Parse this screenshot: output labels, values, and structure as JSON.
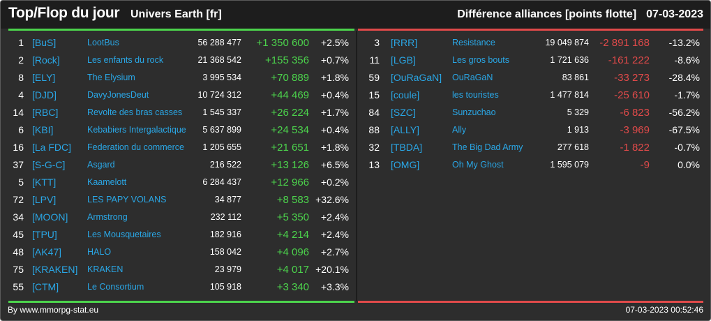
{
  "header": {
    "title": "Top/Flop du jour",
    "universe": "Univers Earth [fr]",
    "subtitle": "Différence alliances [points flotte]",
    "date": "07-03-2023"
  },
  "colors": {
    "accent_green": "#4cd34c",
    "accent_red": "#e04a4a",
    "tag_blue": "#2aa7e6",
    "background": "#2d2d2d"
  },
  "top": [
    {
      "rank": "1",
      "tag": "[BuS]",
      "name": "LootBus",
      "points": "56 288 477",
      "diff": "+1 350 600",
      "pct": "+2.5%"
    },
    {
      "rank": "2",
      "tag": "[Rock]",
      "name": "Les enfants du rock",
      "points": "21 368 542",
      "diff": "+155 356",
      "pct": "+0.7%"
    },
    {
      "rank": "8",
      "tag": "[ELY]",
      "name": "The Elysium",
      "points": "3 995 534",
      "diff": "+70 889",
      "pct": "+1.8%"
    },
    {
      "rank": "4",
      "tag": "[DJD]",
      "name": "DavyJonesDeut",
      "points": "10 724 312",
      "diff": "+44 469",
      "pct": "+0.4%"
    },
    {
      "rank": "14",
      "tag": "[RBC]",
      "name": "Revolte des bras casses",
      "points": "1 545 337",
      "diff": "+26 224",
      "pct": "+1.7%"
    },
    {
      "rank": "6",
      "tag": "[KBI]",
      "name": "Kebabiers Intergalactique",
      "points": "5 637 899",
      "diff": "+24 534",
      "pct": "+0.4%"
    },
    {
      "rank": "16",
      "tag": "[La FDC]",
      "name": "Federation du commerce",
      "points": "1 205 655",
      "diff": "+21 651",
      "pct": "+1.8%"
    },
    {
      "rank": "37",
      "tag": "[S-G-C]",
      "name": "Asgard",
      "points": "216 522",
      "diff": "+13 126",
      "pct": "+6.5%"
    },
    {
      "rank": "5",
      "tag": "[KTT]",
      "name": "Kaamelott",
      "points": "6 284 437",
      "diff": "+12 966",
      "pct": "+0.2%"
    },
    {
      "rank": "72",
      "tag": "[LPV]",
      "name": "LES PAPY VOLANS",
      "points": "34 877",
      "diff": "+8 583",
      "pct": "+32.6%"
    },
    {
      "rank": "34",
      "tag": "[MOON]",
      "name": "Armstrong",
      "points": "232 112",
      "diff": "+5 350",
      "pct": "+2.4%"
    },
    {
      "rank": "45",
      "tag": "[TPU]",
      "name": "Les Mousquetaires",
      "points": "182 916",
      "diff": "+4 214",
      "pct": "+2.4%"
    },
    {
      "rank": "48",
      "tag": "[AK47]",
      "name": "HALO",
      "points": "158 042",
      "diff": "+4 096",
      "pct": "+2.7%"
    },
    {
      "rank": "75",
      "tag": "[KRAKEN]",
      "name": "KRAKEN",
      "points": "23 979",
      "diff": "+4 017",
      "pct": "+20.1%"
    },
    {
      "rank": "55",
      "tag": "[CTM]",
      "name": "Le Consortium",
      "points": "105 918",
      "diff": "+3 340",
      "pct": "+3.3%"
    }
  ],
  "flop": [
    {
      "rank": "3",
      "tag": "[RRR]",
      "name": "Resistance",
      "points": "19 049 874",
      "diff": "-2 891 168",
      "pct": "-13.2%"
    },
    {
      "rank": "11",
      "tag": "[LGB]",
      "name": "Les gros bouts",
      "points": "1 721 636",
      "diff": "-161 222",
      "pct": "-8.6%"
    },
    {
      "rank": "59",
      "tag": "[OuRaGaN]",
      "name": "OuRaGaN",
      "points": "83 861",
      "diff": "-33 273",
      "pct": "-28.4%"
    },
    {
      "rank": "15",
      "tag": "[coule]",
      "name": "les touristes",
      "points": "1 477 814",
      "diff": "-25 610",
      "pct": "-1.7%"
    },
    {
      "rank": "84",
      "tag": "[SZC]",
      "name": "Sunzuchao",
      "points": "5 329",
      "diff": "-6 823",
      "pct": "-56.2%"
    },
    {
      "rank": "88",
      "tag": "[ALLY]",
      "name": "Ally",
      "points": "1 913",
      "diff": "-3 969",
      "pct": "-67.5%"
    },
    {
      "rank": "32",
      "tag": "[TBDA]",
      "name": "The Big Dad Army",
      "points": "277 618",
      "diff": "-1 822",
      "pct": "-0.7%"
    },
    {
      "rank": "13",
      "tag": "[OMG]",
      "name": "Oh My Ghost",
      "points": "1 595 079",
      "diff": "-9",
      "pct": "0.0%"
    }
  ],
  "footer": {
    "credit": "By www.mmorpg-stat.eu",
    "timestamp": "07-03-2023 00:52:46"
  }
}
